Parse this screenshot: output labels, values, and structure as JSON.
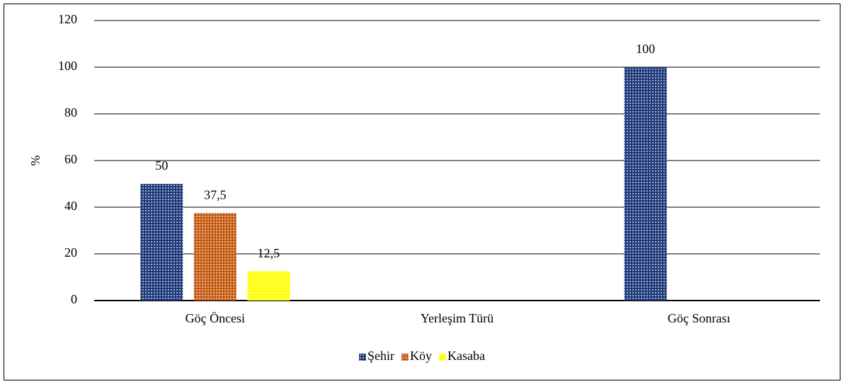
{
  "chart_data": {
    "type": "bar",
    "y_label": "%",
    "categories": [
      "Göç Öncesi",
      "Yerleşim Türü",
      "Göç Sonrası"
    ],
    "series": [
      {
        "name": "Şehir",
        "color": "#1f3a7a",
        "values": [
          50,
          null,
          100
        ],
        "value_labels": [
          "50",
          null,
          "100"
        ]
      },
      {
        "name": "Köy",
        "color": "#c55a11",
        "values": [
          37.5,
          null,
          null
        ],
        "value_labels": [
          "37,5",
          null,
          null
        ]
      },
      {
        "name": "Kasaba",
        "color": "#ffff00",
        "values": [
          12.5,
          null,
          null
        ],
        "value_labels": [
          "12,5",
          null,
          null
        ]
      }
    ],
    "ylim": [
      0,
      120
    ],
    "yticks": [
      0,
      20,
      40,
      60,
      80,
      100,
      120
    ],
    "grid": true,
    "legend": "bottom"
  }
}
